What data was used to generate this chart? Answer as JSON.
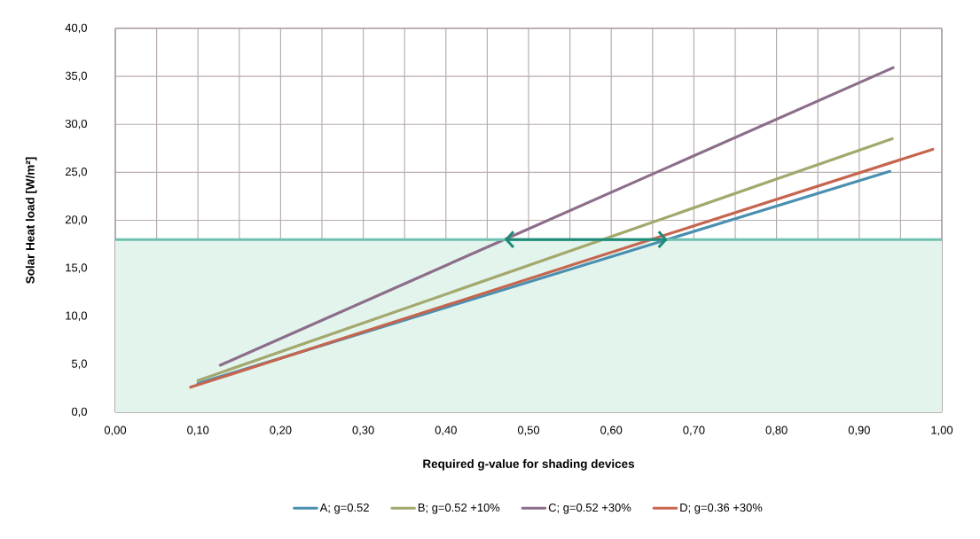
{
  "chart_data": {
    "type": "line",
    "xlabel": "Required g-value for shading devices",
    "ylabel": "Solar Heat load [W/m²]",
    "series": [
      {
        "name": "A; g=0.52",
        "color": "#4a8fb0",
        "x": [
          0.1,
          0.937
        ],
        "values": [
          3.0,
          25.1
        ]
      },
      {
        "name": "B; g=0.52 +10%",
        "color": "#a3a86d",
        "x": [
          0.1,
          0.94
        ],
        "values": [
          3.3,
          28.5
        ]
      },
      {
        "name": "C; g=0.52 +30%",
        "color": "#8c6d8a",
        "x": [
          0.127,
          0.941
        ],
        "values": [
          4.9,
          35.9
        ]
      },
      {
        "name": "D; g=0.36 +30%",
        "color": "#c6654f",
        "x": [
          0.091,
          0.989
        ],
        "values": [
          2.6,
          27.4
        ]
      }
    ],
    "xlim": [
      0,
      1
    ],
    "ylim": [
      0,
      40
    ],
    "xticks": [
      {
        "value": 0,
        "label": "0,00"
      },
      {
        "value": 0.05,
        "label": null
      },
      {
        "value": 0.1,
        "label": "0,10"
      },
      {
        "value": 0.15,
        "label": null
      },
      {
        "value": 0.2,
        "label": "0,20"
      },
      {
        "value": 0.25,
        "label": null
      },
      {
        "value": 0.3,
        "label": "0,30"
      },
      {
        "value": 0.35,
        "label": null
      },
      {
        "value": 0.4,
        "label": "0,40"
      },
      {
        "value": 0.45,
        "label": null
      },
      {
        "value": 0.5,
        "label": "0,50"
      },
      {
        "value": 0.55,
        "label": null
      },
      {
        "value": 0.6,
        "label": "0,60"
      },
      {
        "value": 0.65,
        "label": null
      },
      {
        "value": 0.7,
        "label": "0,70"
      },
      {
        "value": 0.75,
        "label": null
      },
      {
        "value": 0.8,
        "label": "0,80"
      },
      {
        "value": 0.85,
        "label": null
      },
      {
        "value": 0.9,
        "label": "0,90"
      },
      {
        "value": 0.95,
        "label": null
      },
      {
        "value": 1,
        "label": "1,00"
      }
    ],
    "yticks": [
      {
        "value": 0,
        "label": "0,0"
      },
      {
        "value": 5,
        "label": "5,0"
      },
      {
        "value": 10,
        "label": "10,0"
      },
      {
        "value": 15,
        "label": "15,0"
      },
      {
        "value": 20,
        "label": "20,0"
      },
      {
        "value": 25,
        "label": "25,0"
      },
      {
        "value": 30,
        "label": "30,0"
      },
      {
        "value": 35,
        "label": "35,0"
      },
      {
        "value": 40,
        "label": "40,0"
      }
    ],
    "ref_lines": [
      {
        "axis": "y",
        "value": 18,
        "color": "#6cc2ae"
      }
    ],
    "bands": [
      {
        "axis": "y",
        "from": 0,
        "to": 18,
        "color": "#e2f4ec"
      }
    ],
    "grid": true,
    "legend": "bottom",
    "marker": "none",
    "line_style": "solid"
  }
}
